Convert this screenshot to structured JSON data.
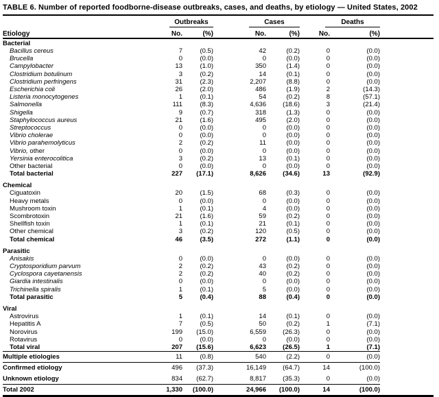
{
  "title": "TABLE 6. Number of reported foodborne-disease outbreaks, cases, and deaths, by etiology — United States, 2002",
  "header": {
    "etiology_label": "Etiology",
    "groups": [
      {
        "label": "Outbreaks",
        "no": "No.",
        "pct": "(%)"
      },
      {
        "label": "Cases",
        "no": "No.",
        "pct": "(%)"
      },
      {
        "label": "Deaths",
        "no": "No.",
        "pct": "(%)"
      }
    ]
  },
  "colors": {
    "text": "#000000",
    "background": "#ffffff",
    "rule": "#000000"
  },
  "sections": [
    {
      "name": "Bacterial",
      "rows": [
        {
          "label": "Bacillus cereus",
          "italic": true,
          "values": [
            "7",
            "(0.5)",
            "42",
            "(0.2)",
            "0",
            "(0.0)"
          ]
        },
        {
          "label": "Brucella",
          "italic": true,
          "values": [
            "0",
            "(0.0)",
            "0",
            "(0.0)",
            "0",
            "(0.0)"
          ]
        },
        {
          "label": "Campylobacter",
          "italic": true,
          "values": [
            "13",
            "(1.0)",
            "350",
            "(1.4)",
            "0",
            "(0.0)"
          ]
        },
        {
          "label": "Clostridium botulinum",
          "italic": true,
          "values": [
            "3",
            "(0.2)",
            "14",
            "(0.1)",
            "0",
            "(0.0)"
          ]
        },
        {
          "label": "Clostridium perfringens",
          "italic": true,
          "values": [
            "31",
            "(2.3)",
            "2,207",
            "(8.8)",
            "0",
            "(0.0)"
          ]
        },
        {
          "label": "Escherichia coli",
          "italic": true,
          "values": [
            "26",
            "(2.0)",
            "486",
            "(1.9)",
            "2",
            "(14.3)"
          ]
        },
        {
          "label": "Listeria monocytogenes",
          "italic": true,
          "values": [
            "1",
            "(0.1)",
            "54",
            "(0.2)",
            "8",
            "(57.1)"
          ]
        },
        {
          "label": "Salmonella",
          "italic": true,
          "values": [
            "111",
            "(8.3)",
            "4,636",
            "(18.6)",
            "3",
            "(21.4)"
          ]
        },
        {
          "label": "Shigella",
          "italic": true,
          "values": [
            "9",
            "(0.7)",
            "318",
            "(1.3)",
            "0",
            "(0.0)"
          ]
        },
        {
          "label": "Staphylococcus aureus",
          "italic": true,
          "values": [
            "21",
            "(1.6)",
            "495",
            "(2.0)",
            "0",
            "(0.0)"
          ]
        },
        {
          "label": "Streptococcus",
          "italic": true,
          "values": [
            "0",
            "(0.0)",
            "0",
            "(0.0)",
            "0",
            "(0.0)"
          ]
        },
        {
          "label": "Vibrio cholerae",
          "italic": true,
          "values": [
            "0",
            "(0.0)",
            "0",
            "(0.0)",
            "0",
            "(0.0)"
          ]
        },
        {
          "label": "Vibrio parahemolyticus",
          "italic": true,
          "values": [
            "2",
            "(0.2)",
            "11",
            "(0.0)",
            "0",
            "(0.0)"
          ]
        },
        {
          "label": "Vibrio,",
          "label_suffix": " other",
          "italic": true,
          "values": [
            "0",
            "(0.0)",
            "0",
            "(0.0)",
            "0",
            "(0.0)"
          ]
        },
        {
          "label": "Yersinia enterocolitica",
          "italic": true,
          "values": [
            "3",
            "(0.2)",
            "13",
            "(0.1)",
            "0",
            "(0.0)"
          ]
        },
        {
          "label": "Other bacterial",
          "italic": false,
          "values": [
            "0",
            "(0.0)",
            "0",
            "(0.0)",
            "0",
            "(0.0)"
          ]
        },
        {
          "label": "Total bacterial",
          "italic": false,
          "bold": true,
          "values": [
            "227",
            "(17.1)",
            "8,626",
            "(34.6)",
            "13",
            "(92.9)"
          ]
        }
      ]
    },
    {
      "name": "Chemical",
      "rows": [
        {
          "label": "Ciguatoxin",
          "italic": false,
          "values": [
            "20",
            "(1.5)",
            "68",
            "(0.3)",
            "0",
            "(0.0)"
          ]
        },
        {
          "label": "Heavy metals",
          "italic": false,
          "values": [
            "0",
            "(0.0)",
            "0",
            "(0.0)",
            "0",
            "(0.0)"
          ]
        },
        {
          "label": "Mushroom toxin",
          "italic": false,
          "values": [
            "1",
            "(0.1)",
            "4",
            "(0.0)",
            "0",
            "(0.0)"
          ]
        },
        {
          "label": "Scombrotoxin",
          "italic": false,
          "values": [
            "21",
            "(1.6)",
            "59",
            "(0.2)",
            "0",
            "(0.0)"
          ]
        },
        {
          "label": "Shellfish toxin",
          "italic": false,
          "values": [
            "1",
            "(0.1)",
            "21",
            "(0.1)",
            "0",
            "(0.0)"
          ]
        },
        {
          "label": "Other chemical",
          "italic": false,
          "values": [
            "3",
            "(0.2)",
            "120",
            "(0.5)",
            "0",
            "(0.0)"
          ]
        },
        {
          "label": "Total chemical",
          "italic": false,
          "bold": true,
          "values": [
            "46",
            "(3.5)",
            "272",
            "(1.1)",
            "0",
            "(0.0)"
          ]
        }
      ]
    },
    {
      "name": "Parasitic",
      "rows": [
        {
          "label": "Anisakis",
          "italic": true,
          "values": [
            "0",
            "(0.0)",
            "0",
            "(0.0)",
            "0",
            "(0.0)"
          ]
        },
        {
          "label": "Cryptosporidium parvum",
          "italic": true,
          "values": [
            "2",
            "(0.2)",
            "43",
            "(0.2)",
            "0",
            "(0.0)"
          ]
        },
        {
          "label": "Cyclospora cayetanensis",
          "italic": true,
          "values": [
            "2",
            "(0.2)",
            "40",
            "(0.2)",
            "0",
            "(0.0)"
          ]
        },
        {
          "label": "Giardia intestinalis",
          "italic": true,
          "values": [
            "0",
            "(0.0)",
            "0",
            "(0.0)",
            "0",
            "(0.0)"
          ]
        },
        {
          "label": "Trichinella spiralis",
          "italic": true,
          "values": [
            "1",
            "(0.1)",
            "5",
            "(0.0)",
            "0",
            "(0.0)"
          ]
        },
        {
          "label": "Total parasitic",
          "italic": false,
          "bold": true,
          "values": [
            "5",
            "(0.4)",
            "88",
            "(0.4)",
            "0",
            "(0.0)"
          ]
        }
      ]
    },
    {
      "name": "Viral",
      "rows": [
        {
          "label": "Astrovirus",
          "italic": false,
          "values": [
            "1",
            "(0.1)",
            "14",
            "(0.1)",
            "0",
            "(0.0)"
          ]
        },
        {
          "label": "Hepatitis A",
          "italic": false,
          "values": [
            "7",
            "(0.5)",
            "50",
            "(0.2)",
            "1",
            "(7.1)"
          ]
        },
        {
          "label": "Norovirus",
          "italic": false,
          "values": [
            "199",
            "(15.0)",
            "6,559",
            "(26.3)",
            "0",
            "(0.0)"
          ]
        },
        {
          "label": "Rotavirus",
          "italic": false,
          "values": [
            "0",
            "(0.0)",
            "0",
            "(0.0)",
            "0",
            "(0.0)"
          ]
        },
        {
          "label": "Total viral",
          "italic": false,
          "bold": true,
          "values": [
            "207",
            "(15.6)",
            "6,623",
            "(26.5)",
            "1",
            "(7.1)"
          ]
        }
      ]
    }
  ],
  "footer": [
    {
      "label": "Multiple etiologies",
      "rule_above": true,
      "bold_values": false,
      "values": [
        "11",
        "(0.8)",
        "540",
        "(2.2)",
        "0",
        "(0.0)"
      ]
    },
    {
      "label": "Confirmed etiology",
      "rule_above": true,
      "bold_values": false,
      "values": [
        "496",
        "(37.3)",
        "16,149",
        "(64.7)",
        "14",
        "(100.0)"
      ]
    },
    {
      "label": "Unknown etiology",
      "rule_above": false,
      "bold_values": false,
      "values": [
        "834",
        "(62.7)",
        "8,817",
        "(35.3)",
        "0",
        "(0.0)"
      ]
    },
    {
      "label": "Total 2002",
      "rule_above": true,
      "bold_values": true,
      "last": true,
      "values": [
        "1,330",
        "(100.0)",
        "24,966",
        "(100.0)",
        "14",
        "(100.0)"
      ]
    }
  ]
}
